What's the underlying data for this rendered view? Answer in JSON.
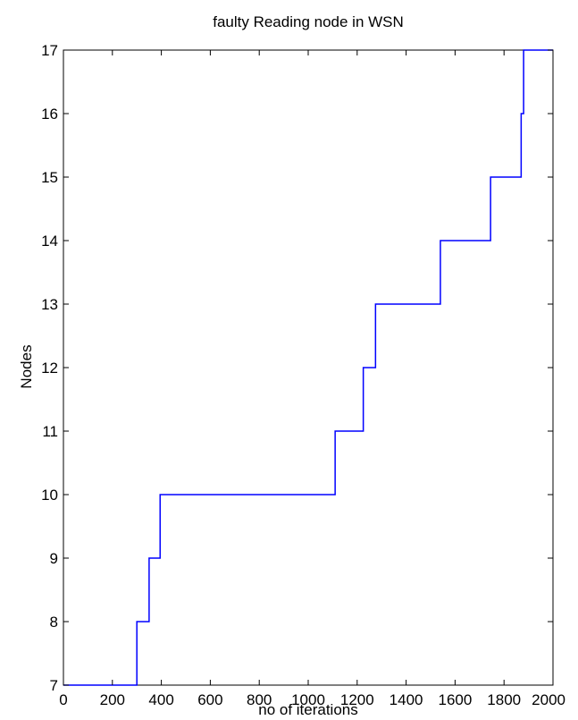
{
  "chart_data": {
    "type": "line",
    "title": "faulty Reading node in  WSN",
    "xlabel": "no of iterations",
    "ylabel": "Nodes",
    "xlim": [
      0,
      2000
    ],
    "ylim": [
      7,
      17
    ],
    "xticks": [
      0,
      200,
      400,
      600,
      800,
      1000,
      1200,
      1400,
      1600,
      1800,
      2000
    ],
    "yticks": [
      7,
      8,
      9,
      10,
      11,
      12,
      13,
      14,
      15,
      16,
      17
    ],
    "xtick_labels": [
      "0",
      "200",
      "400",
      "600",
      "800",
      "1000",
      "1200",
      "1400",
      "1600",
      "1800",
      "2000"
    ],
    "ytick_labels": [
      "7",
      "8",
      "9",
      "10",
      "11",
      "12",
      "13",
      "14",
      "15",
      "16",
      "17"
    ],
    "grid": false,
    "line_style": "step",
    "series": [
      {
        "color": "#0000ff",
        "x": [
          0,
          300,
          300,
          350,
          350,
          395,
          395,
          1110,
          1110,
          1225,
          1225,
          1275,
          1275,
          1540,
          1540,
          1745,
          1745,
          1870,
          1870,
          1880,
          1880,
          2000
        ],
        "y": [
          7,
          7,
          8,
          8,
          9,
          9,
          10,
          10,
          11,
          11,
          12,
          12,
          13,
          13,
          14,
          14,
          15,
          15,
          16,
          16,
          17,
          17
        ]
      }
    ]
  }
}
